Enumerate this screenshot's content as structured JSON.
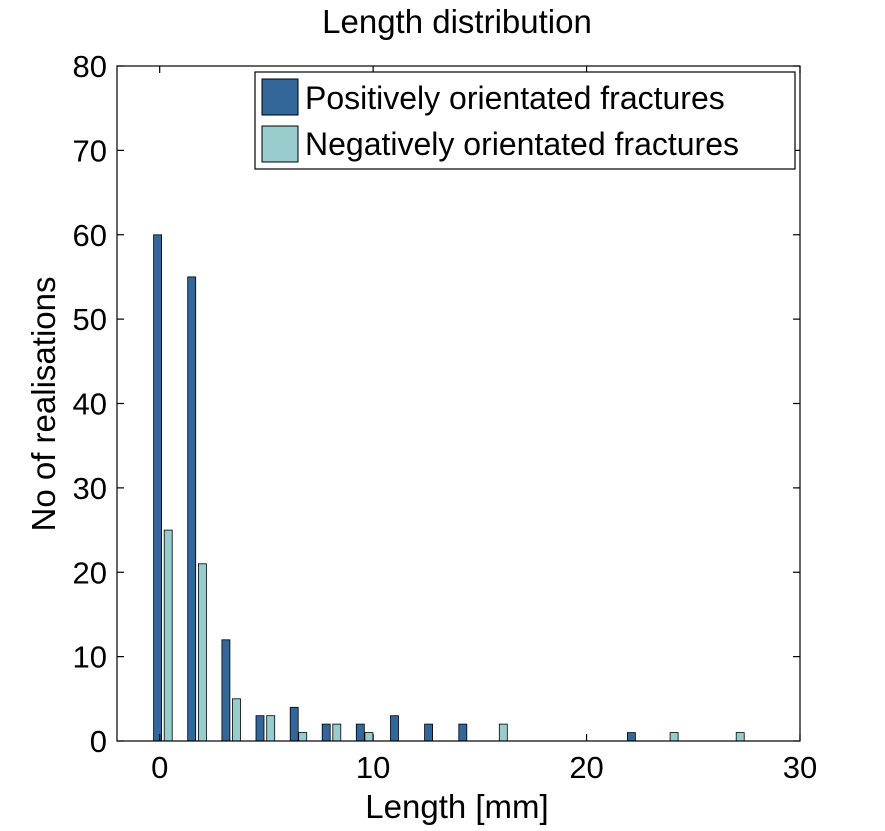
{
  "chart_data": {
    "type": "bar",
    "title": "Length distribution",
    "xlabel": "Length [mm]",
    "ylabel": "No of realisations",
    "xlim": [
      -2,
      30
    ],
    "ylim": [
      0,
      80
    ],
    "xticks": [
      0,
      10,
      20,
      30
    ],
    "yticks": [
      0,
      10,
      20,
      30,
      40,
      50,
      60,
      70,
      80
    ],
    "grid": false,
    "legend_position": "top-right",
    "series": [
      {
        "name": "Positively orientated fractures",
        "color": "#336699",
        "points": [
          {
            "x": -0.1,
            "y": 60
          },
          {
            "x": 1.5,
            "y": 55
          },
          {
            "x": 3.1,
            "y": 12
          },
          {
            "x": 4.7,
            "y": 3
          },
          {
            "x": 6.3,
            "y": 4
          },
          {
            "x": 7.8,
            "y": 2
          },
          {
            "x": 9.4,
            "y": 2
          },
          {
            "x": 11.0,
            "y": 3
          },
          {
            "x": 12.6,
            "y": 2
          },
          {
            "x": 14.2,
            "y": 2
          },
          {
            "x": 22.1,
            "y": 1
          }
        ]
      },
      {
        "name": "Negatively orientated fractures",
        "color": "#99CCCC",
        "points": [
          {
            "x": 0.4,
            "y": 25
          },
          {
            "x": 2.0,
            "y": 21
          },
          {
            "x": 3.6,
            "y": 5
          },
          {
            "x": 5.2,
            "y": 3
          },
          {
            "x": 6.7,
            "y": 1
          },
          {
            "x": 8.3,
            "y": 2
          },
          {
            "x": 9.8,
            "y": 1
          },
          {
            "x": 16.1,
            "y": 2
          },
          {
            "x": 24.1,
            "y": 1
          },
          {
            "x": 27.2,
            "y": 1
          }
        ]
      }
    ]
  }
}
